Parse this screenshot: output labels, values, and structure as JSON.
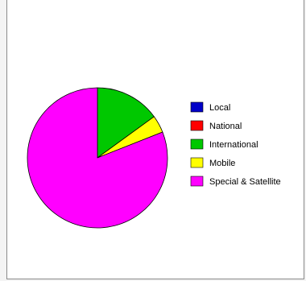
{
  "chart_data": {
    "type": "pie",
    "title": "",
    "categories": [
      "Local",
      "National",
      "International",
      "Mobile",
      "Special & Satellite"
    ],
    "values": [
      0,
      0,
      15,
      4,
      81
    ],
    "colors": [
      "#0000c8",
      "#ff0000",
      "#00c800",
      "#ffff00",
      "#ff00ff"
    ],
    "start": "12 o'clock",
    "direction": "clockwise",
    "legend_position": "right"
  }
}
